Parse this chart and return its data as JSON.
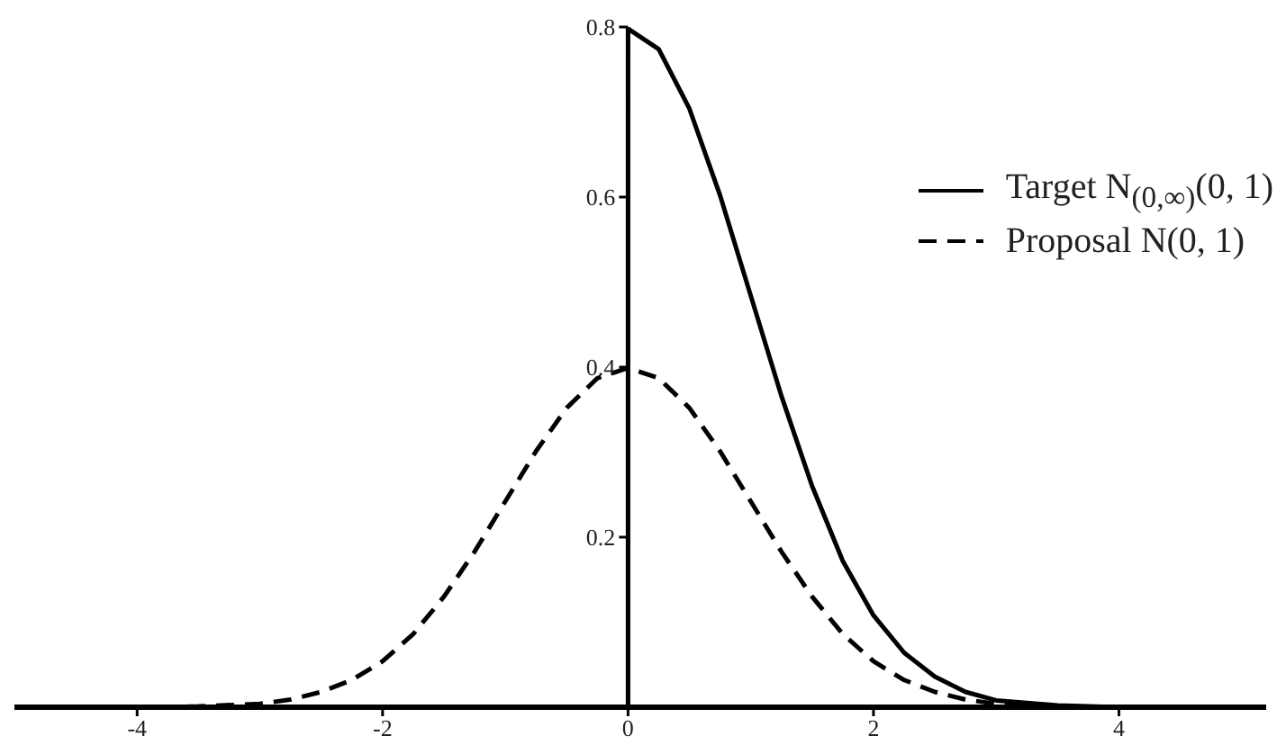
{
  "chart_data": {
    "type": "line",
    "xlim": [
      -5,
      5.2
    ],
    "xticks": [
      -4,
      -2,
      0,
      2,
      4
    ],
    "ylim": [
      0,
      0.8
    ],
    "yticks": [
      0.2,
      0.4,
      0.6,
      0.8
    ],
    "legend": "top right",
    "marker": "none",
    "grid": false,
    "series": [
      {
        "name": "Target N$_{(0,∞)}$(0, 1)",
        "color": "#000000",
        "line_style": "solid",
        "x": [
          -5,
          0,
          0,
          0.25,
          0.5,
          0.75,
          1,
          1.25,
          1.5,
          1.75,
          2,
          2.25,
          2.5,
          2.75,
          3,
          3.5,
          4,
          5.2
        ],
        "values": [
          0,
          0,
          0.798,
          0.774,
          0.704,
          0.602,
          0.484,
          0.366,
          0.26,
          0.172,
          0.108,
          0.064,
          0.036,
          0.018,
          0.008,
          0.002,
          0,
          0
        ]
      },
      {
        "name": "Proposal N(0, 1)",
        "color": "#000000",
        "line_style": "dashed",
        "x": [
          -5,
          -4,
          -3.5,
          -3,
          -2.75,
          -2.5,
          -2.25,
          -2,
          -1.75,
          -1.5,
          -1.25,
          -1,
          -0.75,
          -0.5,
          -0.25,
          0,
          0.25,
          0.5,
          0.75,
          1,
          1.25,
          1.5,
          1.75,
          2,
          2.25,
          2.5,
          2.75,
          3,
          3.5,
          4,
          5.2
        ],
        "values": [
          0,
          0,
          0.001,
          0.004,
          0.009,
          0.018,
          0.032,
          0.054,
          0.086,
          0.13,
          0.183,
          0.242,
          0.301,
          0.352,
          0.387,
          0.399,
          0.387,
          0.352,
          0.301,
          0.242,
          0.183,
          0.13,
          0.086,
          0.054,
          0.032,
          0.018,
          0.009,
          0.004,
          0.001,
          0,
          0
        ]
      }
    ]
  }
}
